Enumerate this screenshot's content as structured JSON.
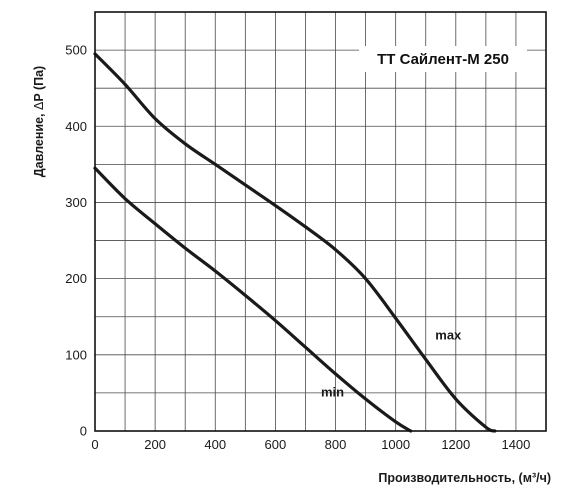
{
  "chart_data": {
    "type": "line",
    "title": "ТТ Сайлент-М 250",
    "xlabel": "Производительность, (м³/ч)",
    "ylabel_main": "Давление, ",
    "ylabel_delta": "Δ",
    "ylabel_rest": "P (Па)",
    "xlim": [
      0,
      1500
    ],
    "ylim": [
      0,
      550
    ],
    "x_ticks": [
      0,
      200,
      400,
      600,
      800,
      1000,
      1200,
      1400
    ],
    "x_tick_labels": [
      "0",
      "200",
      "400",
      "600",
      "800",
      "1000",
      "1200",
      "1400"
    ],
    "y_ticks": [
      0,
      100,
      200,
      300,
      400,
      500
    ],
    "y_tick_labels": [
      "0",
      "100",
      "200",
      "300",
      "400",
      "500"
    ],
    "x_grid_step": 100,
    "y_grid_step": 50,
    "grid": true,
    "series": [
      {
        "name": "max",
        "x": [
          0,
          100,
          200,
          300,
          400,
          500,
          600,
          700,
          800,
          900,
          1000,
          1100,
          1200,
          1300,
          1330
        ],
        "y": [
          495,
          455,
          410,
          377,
          350,
          323,
          296,
          268,
          238,
          200,
          148,
          94,
          42,
          5,
          0
        ]
      },
      {
        "name": "min",
        "x": [
          0,
          100,
          200,
          300,
          400,
          500,
          600,
          700,
          800,
          900,
          1000,
          1050
        ],
        "y": [
          345,
          305,
          272,
          240,
          210,
          178,
          145,
          110,
          75,
          42,
          12,
          0
        ]
      }
    ],
    "annotations": [
      {
        "text": "max",
        "x": 1175,
        "y": 120
      },
      {
        "text": "min",
        "x": 790,
        "y": 45
      }
    ]
  }
}
